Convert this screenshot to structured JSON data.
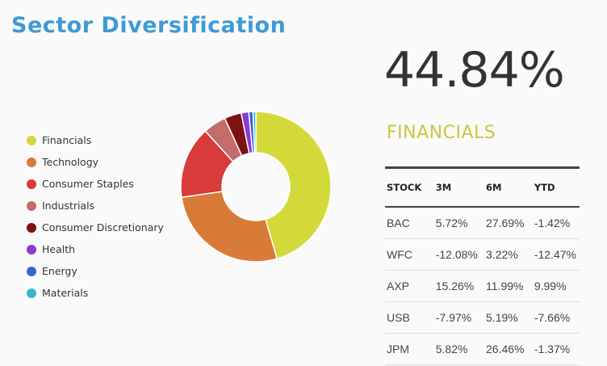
{
  "title": "Sector Diversification",
  "selected": {
    "percent": "44.84%",
    "name": "FINANCIALS"
  },
  "colors": {
    "title": "#3f9ad6",
    "selected_name": "#c8c83c"
  },
  "table": {
    "headers": [
      "STOCK",
      "3M",
      "6M",
      "YTD"
    ],
    "rows": [
      [
        "BAC",
        "5.72%",
        "27.69%",
        "-1.42%"
      ],
      [
        "WFC",
        "-12.08%",
        "3.22%",
        "-12.47%"
      ],
      [
        "AXP",
        "15.26%",
        "11.99%",
        "9.99%"
      ],
      [
        "USB",
        "-7.97%",
        "5.19%",
        "-7.66%"
      ],
      [
        "JPM",
        "5.82%",
        "26.46%",
        "-1.37%"
      ]
    ]
  },
  "chart_data": {
    "type": "pie",
    "title": "Sector Diversification",
    "donut": true,
    "legend_position": "left",
    "categories": [
      "Financials",
      "Technology",
      "Consumer Staples",
      "Industrials",
      "Consumer Discretionary",
      "Health",
      "Energy",
      "Materials"
    ],
    "values": [
      44.84,
      26.9,
      15.3,
      4.9,
      3.6,
      1.6,
      0.9,
      0.6
    ],
    "colors": [
      "#d4d93a",
      "#d97b38",
      "#d93a3a",
      "#c46c6c",
      "#7c1212",
      "#8a3ad0",
      "#3a64d0",
      "#3ab7d0"
    ]
  }
}
